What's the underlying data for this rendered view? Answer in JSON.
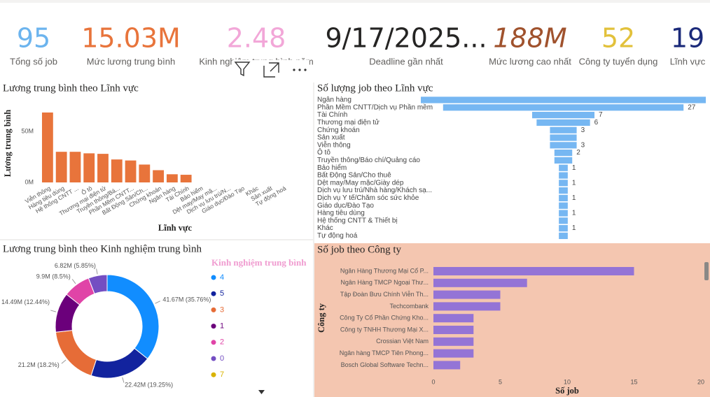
{
  "cards": [
    {
      "value": 95,
      "label": "Tổng số job",
      "color": "#6cb4ee"
    },
    {
      "value": "15.03M",
      "label": "Mức lương trung bình",
      "color": "#e8743b"
    },
    {
      "value": 2.48,
      "label": "Kinh nghiệm trung bình năm",
      "color": "#f2a7d8"
    },
    {
      "value": "9/17/2025...",
      "label": "Deadline gần nhất",
      "color": "#252423"
    },
    {
      "value": "188M",
      "label": "Mức lương cao nhất",
      "color": "#a0522d",
      "italic": true
    },
    {
      "value": 52,
      "label": "Công ty tuyển dụng",
      "color": "#e2c13b"
    },
    {
      "value": 19,
      "label": "Lĩnh vực",
      "color": "#1b2a7a"
    }
  ],
  "chart_data": [
    {
      "type": "bar",
      "title": "Lương trung bình theo Lĩnh vực",
      "x_label": "Lĩnh vực",
      "y_label": "Lương trung bình",
      "color": "#e8743b",
      "categories": [
        "Viễn thông",
        "Hàng tiêu dùng",
        "Hệ thống CNTT ...",
        "Ô tô",
        "Thương mại điện tử",
        "Truyền thông/Bá...",
        "Phần Mềm CNTT...",
        "Bất Động Sản/Ch...",
        "Chứng khoán",
        "Ngân hàng",
        "Tài Chính",
        "Bảo hiểm",
        "Dệt may/May mặ...",
        "Dịch vụ lưu trú/N...",
        "Giáo dục/Đào Tạo",
        "Khác",
        "Sản xuất",
        "Tự động hoá"
      ],
      "values": [
        68.5,
        30,
        30,
        28.5,
        28,
        22.5,
        21.5,
        17.5,
        12,
        8,
        7.5,
        null,
        null,
        null,
        null,
        null,
        null,
        null
      ],
      "ylim": [
        0,
        76
      ],
      "yticks": [
        {
          "value": 0,
          "label": "0M"
        },
        {
          "value": 50,
          "label": "50M"
        }
      ]
    },
    {
      "type": "funnel",
      "title": "Số lượng job theo Lĩnh vực",
      "color": "#76b7f2",
      "categories": [
        "Ngân hàng",
        "Phần Mềm CNTT/Dịch vụ Phần mềm",
        "Tài Chính",
        "Thương mại điện tử",
        "Chứng khoán",
        "Sản xuất",
        "Viễn thông",
        "Ô tô",
        "Truyền thông/Báo chí/Quảng cáo",
        "Bảo hiểm",
        "Bất Động Sản/Cho thuê",
        "Dệt may/May mặc/Giày dép",
        "Dịch vụ lưu trú/Nhà hàng/Khách sạ...",
        "Dịch vụ Y tế/Chăm sóc sức khỏe",
        "Giáo dục/Đào Tạo",
        "Hàng tiêu dùng",
        "Hệ thống CNTT & Thiết bị",
        "Khác",
        "Tự động hoá"
      ],
      "values": [
        32,
        27,
        7,
        6,
        3,
        3,
        3,
        2,
        2,
        1,
        1,
        1,
        1,
        1,
        1,
        1,
        1,
        1,
        1
      ],
      "value_labels": [
        null,
        "27",
        "7",
        "6",
        "3",
        null,
        "3",
        "2",
        null,
        "1",
        null,
        "1",
        null,
        "1",
        null,
        "1",
        null,
        "1",
        null
      ]
    },
    {
      "type": "donut",
      "title": "Lương trung bình theo Kinh nghiệm trung bình",
      "legend_title": "Kinh nghiệm trung bình",
      "legend_color": "#f09cd0",
      "categories": [
        "4",
        "5",
        "3",
        "1",
        "2",
        "0",
        "7"
      ],
      "colors": [
        "#118dff",
        "#12239e",
        "#e66c37",
        "#6b007b",
        "#e044a7",
        "#744ec2",
        "#d9b300"
      ],
      "values": [
        41.67,
        22.42,
        21.2,
        14.49,
        9.9,
        6.82,
        null
      ],
      "value_labels": [
        "41.67M (35.76%)",
        "22.42M (19.25%)",
        "21.2M (18.2%)",
        "14.49M (12.44%)",
        "9.9M (8.5%)",
        "6.82M (5.85%)",
        null
      ]
    },
    {
      "type": "hbar",
      "title": "Số job theo Công ty",
      "x_label": "Số job",
      "y_label": "Công ty",
      "color": "#9474d6",
      "background": "#f4c6b0",
      "categories": [
        "Ngân Hàng Thương Mại Cổ P...",
        "Ngân Hàng TMCP Ngoại Thư...",
        "Tập Đoàn Bưu Chính Viễn Th...",
        "Techcombank",
        "Công Ty Cổ Phần Chứng Kho...",
        "Công ty TNHH Thương Mại X...",
        "Crossian Việt Nam",
        "Ngân hàng TMCP Tiên Phong...",
        "Bosch Global Software Techn..."
      ],
      "values": [
        15,
        7,
        5,
        5,
        3,
        3,
        3,
        3,
        2
      ],
      "xlim": [
        0,
        20
      ],
      "xticks": [
        0,
        5,
        10,
        15,
        20
      ]
    }
  ]
}
